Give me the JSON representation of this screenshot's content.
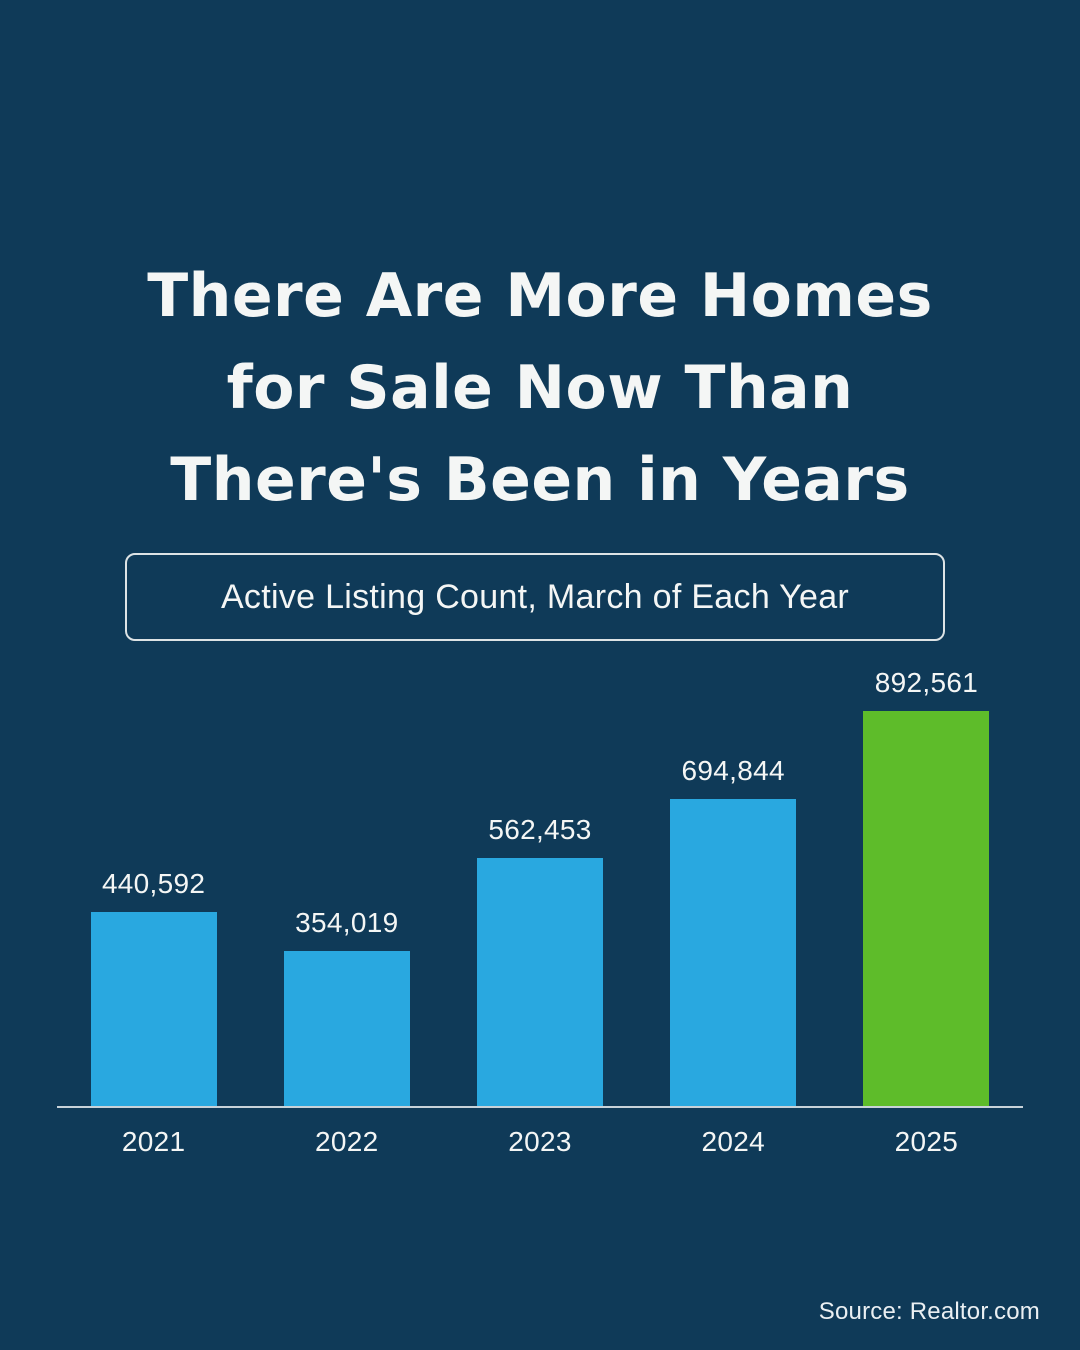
{
  "page": {
    "title_lines": [
      "There Are More Homes",
      "for Sale Now Than",
      "There's Been in Years"
    ],
    "subtitle": "Active Listing Count, March of Each Year",
    "source": "Source: Realtor.com"
  },
  "colors": {
    "background": "#0f3a58",
    "bar_blue": "#29a8e0",
    "bar_green": "#5ebc2a",
    "text": "#f4f6f5",
    "axis_line": "#c8d2d9"
  },
  "chart_data": {
    "type": "bar",
    "title": "Active Listing Count, March of Each Year",
    "categories": [
      "2021",
      "2022",
      "2023",
      "2024",
      "2025"
    ],
    "values": [
      440592,
      354019,
      562453,
      694844,
      892561
    ],
    "value_labels": [
      "440,592",
      "354,019",
      "562,453",
      "694,844",
      "892,561"
    ],
    "bar_colors": [
      "blue",
      "blue",
      "blue",
      "blue",
      "green"
    ],
    "xlabel": "",
    "ylabel": "",
    "ylim": [
      0,
      900000
    ],
    "grid": false,
    "legend": "none"
  }
}
